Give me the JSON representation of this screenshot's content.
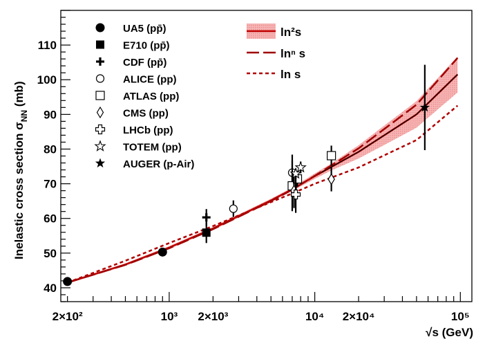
{
  "chart_data": {
    "type": "scatter",
    "x_scale": "log",
    "y_scale": "linear",
    "xlim": [
      180,
      120000
    ],
    "ylim": [
      36,
      120
    ],
    "grid": false,
    "xlabel": "√s (GeV)",
    "ylabel": "Inelastic cross section σ",
    "ylabel_sub": "NN",
    "ylabel_unit": " (mb)",
    "x_ticks": [
      {
        "value": 200,
        "label": "2×10²"
      },
      {
        "value": 1000,
        "label": "10³"
      },
      {
        "value": 2000,
        "label": "2×10³"
      },
      {
        "value": 10000,
        "label": "10⁴"
      },
      {
        "value": 20000,
        "label": "2×10⁴"
      },
      {
        "value": 100000,
        "label": "10⁵"
      }
    ],
    "y_ticks": [
      {
        "value": 40,
        "label": "40"
      },
      {
        "value": 50,
        "label": "50"
      },
      {
        "value": 60,
        "label": "60"
      },
      {
        "value": 70,
        "label": "70"
      },
      {
        "value": 80,
        "label": "80"
      },
      {
        "value": 90,
        "label": "90"
      },
      {
        "value": 100,
        "label": "100"
      },
      {
        "value": 110,
        "label": "110"
      }
    ],
    "data_series": [
      {
        "name": "UA5 (pp̄)",
        "marker": "filled-circle",
        "points": [
          {
            "x": 200,
            "y": 41.8,
            "err": 1.0
          },
          {
            "x": 900,
            "y": 50.3,
            "err": 0.9
          }
        ]
      },
      {
        "name": "E710 (pp̄)",
        "marker": "filled-square",
        "points": [
          {
            "x": 1800,
            "y": 55.9,
            "err": 3.0
          }
        ]
      },
      {
        "name": "CDF (pp̄)",
        "marker": "plus",
        "points": [
          {
            "x": 1800,
            "y": 60.3,
            "err": 2.4
          }
        ]
      },
      {
        "name": "ALICE (pp)",
        "marker": "open-circle",
        "points": [
          {
            "x": 2760,
            "y": 62.8,
            "err": 2.4
          },
          {
            "x": 7000,
            "y": 73.2,
            "err": 5.2
          }
        ]
      },
      {
        "name": "ATLAS (pp)",
        "marker": "open-square",
        "points": [
          {
            "x": 7000,
            "y": 69.4,
            "err": 7.3
          },
          {
            "x": 7600,
            "y": 71.4,
            "err": 2.2
          },
          {
            "x": 13000,
            "y": 78.1,
            "err": 2.9
          }
        ]
      },
      {
        "name": "CMS (pp)",
        "marker": "open-diamond",
        "points": [
          {
            "x": 7200,
            "y": 68.0,
            "err": 5.0
          },
          {
            "x": 13000,
            "y": 71.3,
            "err": 3.5
          }
        ]
      },
      {
        "name": "LHCb (pp)",
        "marker": "open-cross",
        "points": [
          {
            "x": 7400,
            "y": 66.9,
            "err": 5.3
          }
        ]
      },
      {
        "name": "TOTEM (pp)",
        "marker": "open-star",
        "points": [
          {
            "x": 7400,
            "y": 72.9,
            "err": 1.5
          },
          {
            "x": 8000,
            "y": 74.7,
            "err": 1.7
          }
        ]
      },
      {
        "name": "AUGER (p-Air)",
        "marker": "filled-star",
        "points": [
          {
            "x": 57000,
            "y": 92.0,
            "err": 12.3
          }
        ]
      }
    ],
    "fit_curves": [
      {
        "name": "ln²s",
        "style": "solid-with-band",
        "color": "#c00000",
        "points": [
          [
            200,
            41.5
          ],
          [
            500,
            46.7
          ],
          [
            1000,
            51.6
          ],
          [
            2000,
            57.1
          ],
          [
            5000,
            65.2
          ],
          [
            7000,
            68.4
          ],
          [
            10000,
            72.2
          ],
          [
            20000,
            79.2
          ],
          [
            50000,
            90.0
          ],
          [
            100000,
            102.3
          ]
        ],
        "band_halfwidth": [
          [
            200,
            0.3
          ],
          [
            1000,
            0.4
          ],
          [
            7000,
            0.5
          ],
          [
            13000,
            1.0
          ],
          [
            30000,
            2.8
          ],
          [
            60000,
            4.2
          ],
          [
            100000,
            5.3
          ]
        ]
      },
      {
        "name": "lnⁿ s",
        "style": "long-dash",
        "color": "#a00000",
        "points": [
          [
            200,
            41.5
          ],
          [
            500,
            46.6
          ],
          [
            1000,
            51.4
          ],
          [
            2000,
            56.9
          ],
          [
            5000,
            65.0
          ],
          [
            7000,
            68.3
          ],
          [
            10000,
            72.3
          ],
          [
            20000,
            80.2
          ],
          [
            50000,
            92.8
          ],
          [
            100000,
            107.2
          ]
        ]
      },
      {
        "name": "ln s",
        "style": "short-dash",
        "color": "#b00000",
        "points": [
          [
            200,
            41.5
          ],
          [
            500,
            47.8
          ],
          [
            1000,
            52.9
          ],
          [
            2000,
            57.8
          ],
          [
            5000,
            64.7
          ],
          [
            7000,
            67.2
          ],
          [
            10000,
            70.0
          ],
          [
            20000,
            74.7
          ],
          [
            50000,
            82.6
          ],
          [
            100000,
            93.2
          ]
        ]
      }
    ]
  }
}
